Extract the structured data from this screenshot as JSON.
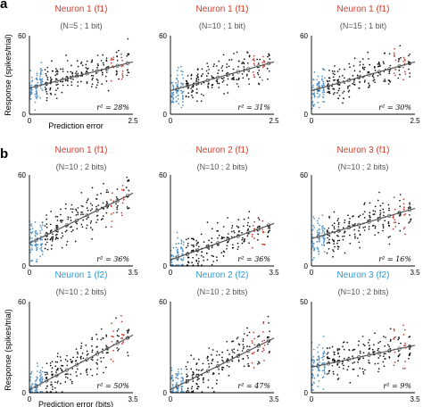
{
  "figure": {
    "panel_labels": [
      "a",
      "b"
    ],
    "ylabel": "Response (spikes/trial)",
    "xlabel_a": "Prediction error (bits)",
    "xlabel_b": "Prediction error (bits)"
  },
  "colors": {
    "blue": "#4a90c8",
    "black": "#111111",
    "red": "#c0392b",
    "fit": "#555555",
    "title_red": "#d23c2a",
    "title_blue": "#2a9ad6",
    "axis": "#000000"
  },
  "chart_data": [
    {
      "type": "scatter",
      "panel": "a",
      "title": "Neuron 1 (f1)",
      "title_color": "red",
      "subtitle": "(N=5 ; 1 bit)",
      "r2": "r² = 28%",
      "xlim": [
        0,
        2.5
      ],
      "ylim": [
        0,
        60
      ],
      "xticks": [
        "0",
        "2.5"
      ],
      "yticks": [
        "0",
        "60"
      ],
      "fit": {
        "x": [
          0,
          2.5
        ],
        "y": [
          20,
          40
        ]
      },
      "xlabel": "Prediction error",
      "show_ylabel": true,
      "seed": 11
    },
    {
      "type": "scatter",
      "panel": "a",
      "title": "Neuron 1 (f1)",
      "title_color": "red",
      "subtitle": "(N=10 ; 1 bit)",
      "r2": "r² = 31%",
      "xlim": [
        0,
        2.5
      ],
      "ylim": [
        0,
        60
      ],
      "xticks": [
        "0",
        "2.5"
      ],
      "yticks": [
        "0",
        "60"
      ],
      "fit": {
        "x": [
          0,
          2.5
        ],
        "y": [
          18,
          40
        ]
      },
      "xlabel": "",
      "show_ylabel": false,
      "seed": 23
    },
    {
      "type": "scatter",
      "panel": "a",
      "title": "Neuron 1 (f1)",
      "title_color": "red",
      "subtitle": "(N=15 ; 1 bit)",
      "r2": "r² = 30%",
      "xlim": [
        0,
        2.5
      ],
      "ylim": [
        0,
        60
      ],
      "xticks": [
        "0",
        "2.5"
      ],
      "yticks": [
        "0",
        "60"
      ],
      "fit": {
        "x": [
          0,
          2.5
        ],
        "y": [
          18,
          40
        ]
      },
      "xlabel": "",
      "show_ylabel": false,
      "seed": 37
    },
    {
      "type": "scatter",
      "panel": "b",
      "title": "Neuron 1 (f1)",
      "title_color": "red",
      "subtitle": "(N=10 ; 2 bits)",
      "r2": "r² = 36%",
      "xlim": [
        0,
        3.5
      ],
      "ylim": [
        0,
        60
      ],
      "xticks": [
        "0",
        "3.5"
      ],
      "yticks": [
        "0",
        "60"
      ],
      "fit": {
        "x": [
          0,
          3.5
        ],
        "y": [
          15,
          48
        ]
      },
      "xlabel": "",
      "show_ylabel": false,
      "seed": 41
    },
    {
      "type": "scatter",
      "panel": "b",
      "title": "Neuron 2 (f1)",
      "title_color": "red",
      "subtitle": "(N=10 ; 2 bits)",
      "r2": "r² = 36%",
      "xlim": [
        0,
        3.5
      ],
      "ylim": [
        0,
        60
      ],
      "xticks": [
        "0",
        "3.5"
      ],
      "yticks": [
        "0",
        "60"
      ],
      "fit": {
        "x": [
          0,
          3.5
        ],
        "y": [
          4,
          28
        ]
      },
      "xlabel": "",
      "show_ylabel": false,
      "seed": 53
    },
    {
      "type": "scatter",
      "panel": "b",
      "title": "Neuron 3 (f1)",
      "title_color": "red",
      "subtitle": "(N=10 ; 2 bits)",
      "r2": "r² = 16%",
      "xlim": [
        0,
        3.5
      ],
      "ylim": [
        0,
        60
      ],
      "xticks": [
        "0",
        "3.5"
      ],
      "yticks": [
        "0",
        "60"
      ],
      "fit": {
        "x": [
          0,
          3.5
        ],
        "y": [
          18,
          38
        ]
      },
      "xlabel": "",
      "show_ylabel": false,
      "seed": 67
    },
    {
      "type": "scatter",
      "panel": "b",
      "title": "Neuron 1 (f2)",
      "title_color": "blue",
      "subtitle": "(N=10 ; 2 bits)",
      "r2": "r² = 50%",
      "xlim": [
        0,
        3.5
      ],
      "ylim": [
        0,
        60
      ],
      "xticks": [
        "0",
        "3.5"
      ],
      "yticks": [
        "0",
        "60"
      ],
      "fit": {
        "x": [
          0,
          3.5
        ],
        "y": [
          2,
          38
        ]
      },
      "xlabel": "Prediction error (bits)",
      "show_ylabel": true,
      "seed": 71
    },
    {
      "type": "scatter",
      "panel": "b",
      "title": "Neuron 2 (f2)",
      "title_color": "blue",
      "subtitle": "(N=10 ; 2 bits)",
      "r2": "r² = 47%",
      "xlim": [
        0,
        3.5
      ],
      "ylim": [
        0,
        60
      ],
      "xticks": [
        "0",
        "3.5"
      ],
      "yticks": [
        "0",
        "60"
      ],
      "fit": {
        "x": [
          0,
          3.5
        ],
        "y": [
          2,
          36
        ]
      },
      "xlabel": "",
      "show_ylabel": false,
      "seed": 83
    },
    {
      "type": "scatter",
      "panel": "b",
      "title": "Neuron 3 (f2)",
      "title_color": "blue",
      "subtitle": "(N=10 ; 2 bits)",
      "r2": "r² = 9%",
      "xlim": [
        0,
        3.5
      ],
      "ylim": [
        0,
        50
      ],
      "xticks": [
        "0",
        "3.5"
      ],
      "yticks": [
        "0",
        "50"
      ],
      "fit": {
        "x": [
          0,
          3.5
        ],
        "y": [
          14,
          26
        ]
      },
      "xlabel": "",
      "show_ylabel": false,
      "seed": 97
    }
  ]
}
